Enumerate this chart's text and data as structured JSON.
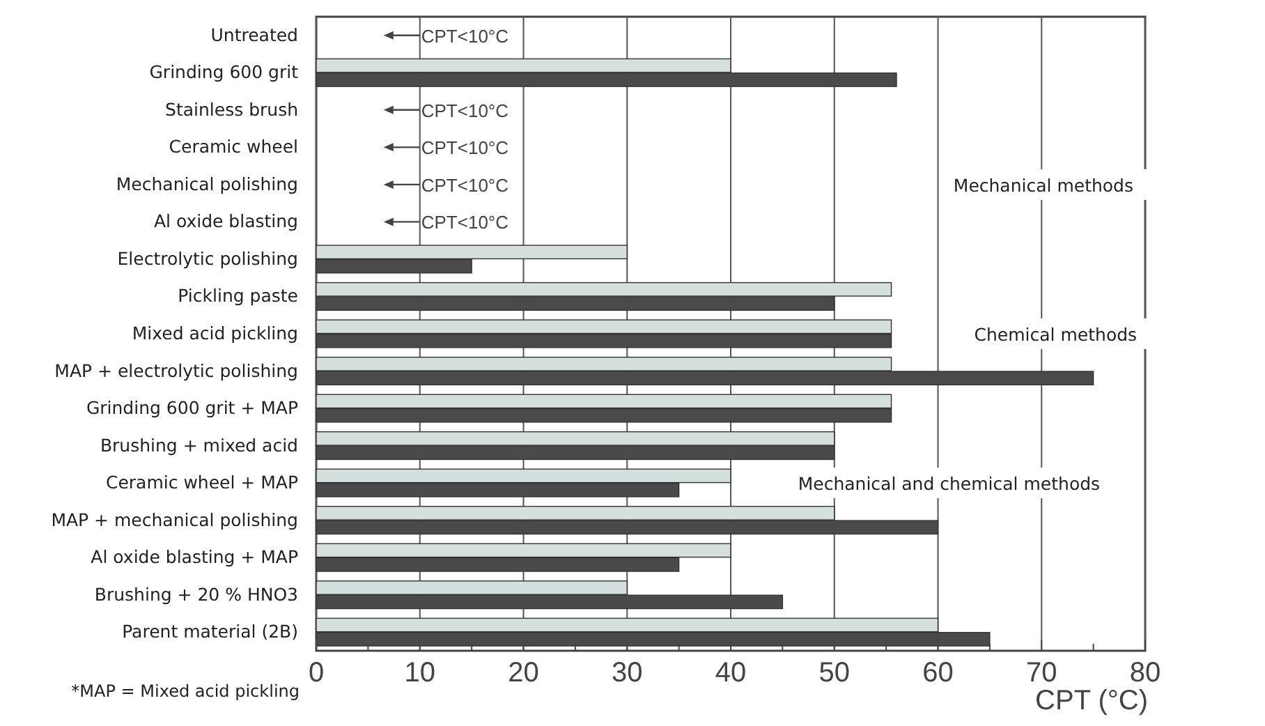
{
  "chart_data": {
    "type": "bar",
    "orientation": "horizontal",
    "xlabel": "CPT (°C)",
    "categories": [
      "Untreated",
      "Grinding 600 grit",
      "Stainless brush",
      "Ceramic wheel",
      "Mechanical polishing",
      "Al oxide blasting",
      "Electrolytic polishing",
      "Pickling paste",
      "Mixed acid pickling",
      "MAP + electrolytic polishing",
      "Grinding 600 grit + MAP",
      "Brushing + mixed acid",
      "Ceramic wheel + MAP",
      "MAP + mechanical polishing",
      "Al oxide blasting + MAP",
      "Brushing + 20 % HNO3",
      "Parent material (2B)"
    ],
    "series": [
      {
        "color": "#d5dfdd",
        "values": [
          null,
          40,
          null,
          null,
          null,
          null,
          30,
          55.5,
          55.5,
          55.5,
          55.5,
          50,
          40,
          50,
          40,
          30,
          60
        ]
      },
      {
        "color": "#4a4a4a",
        "values": [
          null,
          56,
          null,
          null,
          null,
          null,
          15,
          50,
          55.5,
          75,
          55.5,
          50,
          35,
          60,
          35,
          45,
          65
        ]
      }
    ],
    "xlim": [
      0,
      80
    ],
    "xticks": [
      0,
      {
        "value": 5,
        "label": null
      },
      10,
      {
        "value": 15,
        "label": null
      },
      20,
      {
        "value": 25,
        "label": null
      },
      30,
      {
        "value": 35,
        "label": null
      },
      40,
      {
        "value": 45,
        "label": null
      },
      50,
      {
        "value": 55,
        "label": null
      },
      60,
      {
        "value": 65,
        "label": null
      },
      70,
      {
        "value": 75,
        "label": null
      },
      80
    ],
    "grid": "x",
    "annotations": [
      "CPT<10°C",
      "CPT<10°C",
      "CPT<10°C",
      "CPT<10°C",
      "CPT<10°C",
      "Mechanical methods",
      "Chemical methods",
      "Mechanical and chemical methods",
      "*MAP = Mixed acid pickling"
    ]
  }
}
